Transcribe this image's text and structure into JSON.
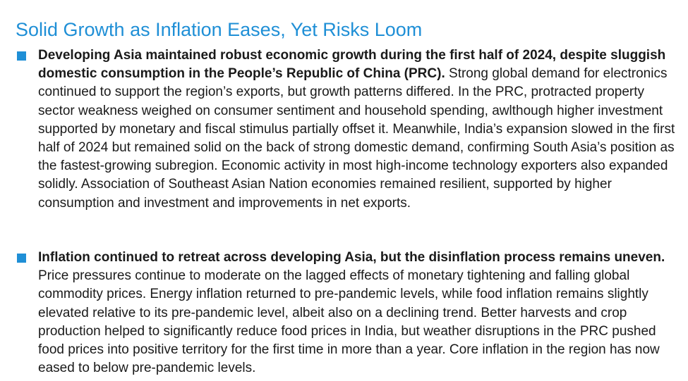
{
  "title": "Solid Growth as Inflation Eases, Yet Risks Loom",
  "colors": {
    "accent": "#1f8fd6",
    "text": "#1a1a1a"
  },
  "bullets": [
    {
      "icon": "square-bullet-icon",
      "lead": "Developing Asia maintained robust economic growth during the first half of 2024, despite sluggish domestic consumption in the People’s Republic of China (PRC).",
      "body": "Strong global demand for electronics continued to support the region’s exports, but growth patterns differed. In the PRC, protracted property sector weakness weighed on consumer sentiment and household spending, awlthough higher investment supported by monetary and fiscal stimulus partially offset it. Meanwhile, India’s expansion slowed in the first half of 2024 but remained solid on the back of strong domestic demand, confirming South Asia’s position as the fastest-growing subregion. Economic activity in most high-income technology exporters also expanded solidly. Association of Southeast Asian Nation economies remained resilient, supported by higher consumption and investment and improvements in net exports."
    },
    {
      "icon": "square-bullet-icon",
      "lead": "Inflation continued to retreat across developing Asia, but the disinflation process remains uneven.",
      "body": "Price pressures continue to moderate on the lagged effects of monetary tightening and falling global commodity prices. Energy inflation returned to pre-pandemic levels, while food inflation remains slightly elevated relative to its pre-pandemic level, albeit also on a declining trend. Better harvests and crop production helped to significantly reduce food prices in India, but weather disruptions in the PRC pushed food prices into positive territory for the first time in more than a year. Core inflation in the region has now eased to below pre-pandemic levels."
    }
  ]
}
